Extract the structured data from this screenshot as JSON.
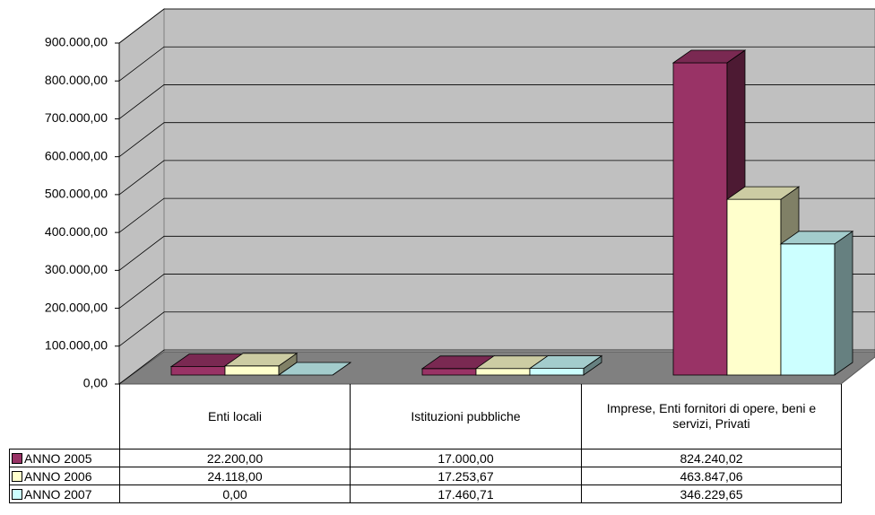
{
  "chart_data": {
    "type": "bar3d",
    "categories": [
      "Enti locali",
      "Istituzioni pubbliche",
      "Imprese, Enti fornitori di opere, beni e servizi, Privati"
    ],
    "series": [
      {
        "name": "ANNO 2005",
        "color": "#993366",
        "values": [
          22200,
          17000,
          824240.02
        ],
        "value_labels": [
          "22.200,00",
          "17.000,00",
          "824.240,02"
        ]
      },
      {
        "name": "ANNO 2006",
        "color": "#ffffcc",
        "values": [
          24118,
          17253.67,
          463847.06
        ],
        "value_labels": [
          "24.118,00",
          "17.253,67",
          "463.847,06"
        ]
      },
      {
        "name": "ANNO 2007",
        "color": "#ccffff",
        "values": [
          0,
          17460.71,
          346229.65
        ],
        "value_labels": [
          "0,00",
          "17.460,71",
          "346.229,65"
        ]
      }
    ],
    "ylim": [
      0,
      900000
    ],
    "yticks": [
      {
        "value": 0,
        "label": "0,00"
      },
      {
        "value": 100000,
        "label": "100.000,00"
      },
      {
        "value": 200000,
        "label": "200.000,00"
      },
      {
        "value": 300000,
        "label": "300.000,00"
      },
      {
        "value": 400000,
        "label": "400.000,00"
      },
      {
        "value": 500000,
        "label": "500.000,00"
      },
      {
        "value": 600000,
        "label": "600.000,00"
      },
      {
        "value": 700000,
        "label": "700.000,00"
      },
      {
        "value": 800000,
        "label": "800.000,00"
      },
      {
        "value": 900000,
        "label": "900.000,00"
      }
    ],
    "grid": true
  }
}
